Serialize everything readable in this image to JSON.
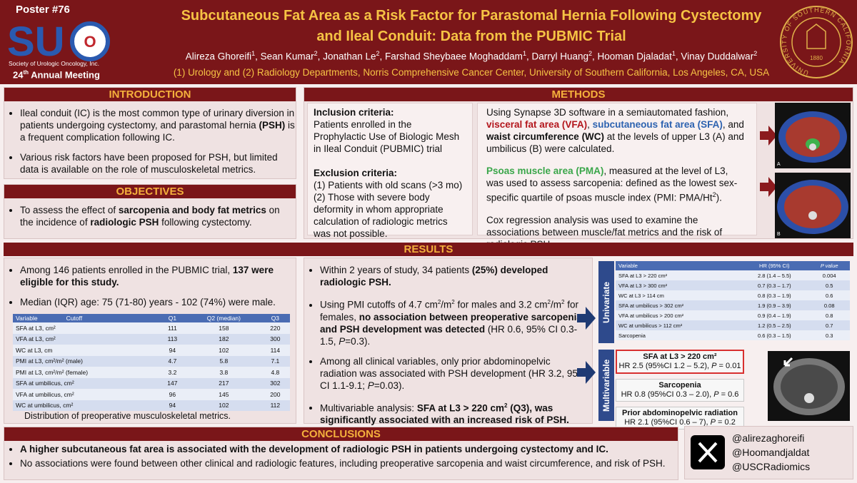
{
  "header": {
    "poster_number": "Poster #76",
    "logo": [
      "SU",
      "O"
    ],
    "society": "Society of Urologic Oncology, Inc.",
    "meeting": [
      "24",
      "th",
      " Annual Meeting"
    ],
    "title": "Subcutaneous Fat Area as a Risk Factor for Parastomal Hernia Following Cystectomy and Ileal Conduit: Data from the PUBMIC Trial",
    "authors": [
      {
        "name": "Alireza Ghoreifi",
        "aff": 1
      },
      {
        "name": "Sean Kumar",
        "aff": 2
      },
      {
        "name": "Jonathan Le",
        "aff": 2
      },
      {
        "name": "Farshad Sheybaee Moghaddam",
        "aff": 1
      },
      {
        "name": "Darryl Huang",
        "aff": 2
      },
      {
        "name": "Hooman Djaladat",
        "aff": 1
      },
      {
        "name": "Vinay Duddalwar",
        "aff": 2
      }
    ],
    "affiliations": "(1) Urology and (2) Radiology Departments, Norris Comprehensive Cancer Center, University of Southern California, Los Angeles, CA, USA",
    "seal": {
      "name": "UNIVERSITY OF SOUTHERN CALIFORNIA",
      "year": "1880"
    }
  },
  "introduction": {
    "heading": "INTRODUCTION",
    "bullets": [
      [
        "Ileal conduit (IC) is the most common type of urinary diversion in patients undergoing cystectomy, and parastomal hernia ",
        "(PSH)",
        " is a frequent complication following IC."
      ],
      [
        "Various risk factors have been proposed for PSH, but limited data is available on the role of musculoskeletal metrics."
      ]
    ]
  },
  "objectives": {
    "heading": "OBJECTIVES",
    "bullets": [
      [
        "To assess the effect of ",
        "sarcopenia and body fat metrics",
        " on the incidence of ",
        "radiologic PSH",
        " following cystectomy."
      ]
    ]
  },
  "methods": {
    "heading": "METHODS",
    "inclusion_heading": "Inclusion criteria:",
    "inclusion": "Patients enrolled in the Prophylactic Use of Biologic Mesh in Ileal Conduit (PUBMIC) trial",
    "exclusion_heading": "Exclusion criteria:",
    "exclusion": [
      "(1) Patients with old scans (>3 mo)",
      "(2) Those with severe body deformity in whom appropriate calculation of radiologic metrics was not possible."
    ],
    "paragraphs": [
      [
        "Using Synapse 3D software in a semiautomated fashion, ",
        "visceral fat area (VFA)",
        ", ",
        "subcutaneous fat area (SFA)",
        ", and ",
        "waist circumference (WC)",
        " at the levels of upper L3 (A) and umbilicus (B) were calculated."
      ],
      [
        "Psoas muscle area (PMA)",
        ", measured at the level of L3, was used to assess sarcopenia: defined as the lowest sex-specific quartile of psoas muscle index (PMI: PMA/Ht",
        "2",
        ")."
      ],
      [
        "Cox regression analysis was used to examine the associations between muscle/fat metrics and the risk of radiologic PSH."
      ]
    ],
    "image_labels": [
      "A",
      "B"
    ]
  },
  "results": {
    "heading": "RESULTS",
    "column1": [
      [
        "Among 146 patients enrolled in the PUBMIC trial, ",
        "137 were eligible for this study."
      ],
      [
        "Median (IQR) age: 75 (71-80) years - 102 (74%) were male."
      ]
    ],
    "distribution_table": {
      "header": [
        "Variable",
        "Cutoff",
        "Q1",
        "Q2 (median)",
        "Q3"
      ],
      "rows": [
        [
          "SFA at L3, cm²",
          111,
          158,
          220
        ],
        [
          "VFA at L3, cm²",
          113,
          182,
          300
        ],
        [
          "WC at L3, cm",
          94,
          102,
          114
        ],
        [
          "PMI at L3, cm²/m² (male)",
          4.7,
          5.8,
          7.1
        ],
        [
          "PMI at L3, cm²/m² (female)",
          3.2,
          3.8,
          4.8
        ],
        [
          "SFA at umbilicus, cm²",
          147,
          217,
          302
        ],
        [
          "VFA at umbilicus, cm²",
          96,
          145,
          200
        ],
        [
          "WC at umbilicus, cm²",
          94,
          102,
          112
        ]
      ]
    },
    "caption": "Distribution of preoperative musculoskeletal metrics.",
    "column2": [
      [
        "Within 2 years of study, 34 patients ",
        "(25%) developed radiologic PSH."
      ],
      [
        "Using PMI cutoffs of 4.7 cm",
        "2",
        "/m",
        "2",
        " for males and 3.2 cm",
        "2",
        "/m",
        "2",
        " for females, ",
        "no association between preoperative sarcopenia and PSH development was detected",
        " (HR 0.6, 95% CI 0.3-1.5, ",
        "P",
        "=0.3)."
      ],
      [
        "Among all clinical variables, only prior abdominopelvic radiation was associated with PSH development (HR 3.2, 95% CI 1.1-9.1; ",
        "P",
        "=0.03)."
      ],
      [
        "Multivariable analysis: ",
        "SFA at L3 > 220 cm",
        "2",
        " (Q3), was significantly associated with an increased risk of PSH."
      ]
    ],
    "univariate": {
      "label": "Univariate",
      "header": [
        "Variable",
        "HR (95% CI)",
        "P value"
      ],
      "rows": [
        [
          "SFA at L3 > 220 cm²",
          "2.8 (1.4 – 5.5)",
          0.004
        ],
        [
          "VFA at L3 > 300 cm²",
          "0.7 (0.3 – 1.7)",
          0.5
        ],
        [
          "WC at L3 > 114 cm",
          "0.8 (0.3 – 1.9)",
          0.6
        ],
        [
          "SFA at umbilicus > 302 cm²",
          "1.9 (0.9 – 3.9)",
          0.08
        ],
        [
          "VFA at umbilicus > 200 cm²",
          "0.9 (0.4 – 1.9)",
          0.8
        ],
        [
          "WC at umbilicus > 112 cm²",
          "1.2 (0.5 – 2.5)",
          0.7
        ],
        [
          "Sarcopenia",
          "0.6 (0.3 – 1.5)",
          0.3
        ]
      ]
    },
    "multivariable": {
      "label": "Multivariable",
      "items": [
        {
          "title": "SFA at L3 > 220 cm²",
          "detail": [
            "HR 2.5 (95%CI 1.2 – 5.2), ",
            "P",
            " = 0.01"
          ]
        },
        {
          "title": "Sarcopenia",
          "detail": [
            "HR 0.8 (95%CI 0.3 – 2.0), ",
            "P",
            " = 0.6"
          ]
        },
        {
          "title": "Prior abdominopelvic radiation",
          "detail": [
            "HR 2.1 (95%CI 0.6 – 7), ",
            "P",
            " = 0.2"
          ]
        }
      ]
    }
  },
  "conclusions": {
    "heading": "CONCLUSIONS",
    "bullets": [
      "A higher subcutaneous fat area is associated with the development of radiologic PSH in patients undergoing cystectomy and IC.",
      "No associations were found between other clinical and radiologic features, including preoperative sarcopenia and waist circumference, and risk of PSH."
    ]
  },
  "social": {
    "handles": [
      "@alirezaghoreifi",
      "@Hoomandjaldat",
      "@USCRadiomics"
    ]
  }
}
